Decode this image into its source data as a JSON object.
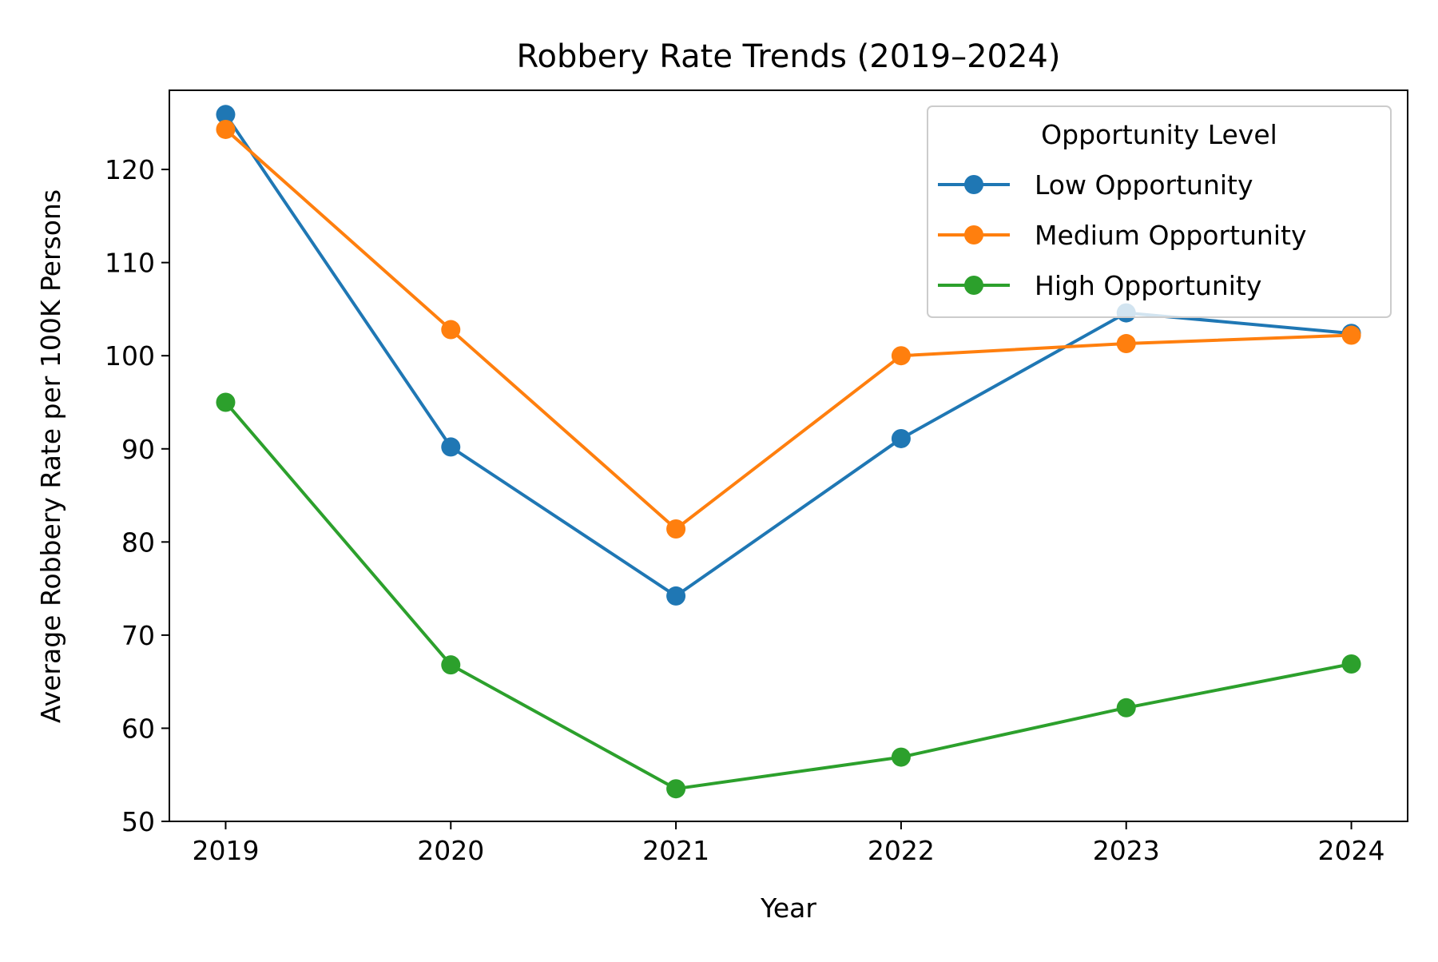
{
  "chart_data": {
    "type": "line",
    "title": "Robbery Rate Trends (2019–2024)",
    "xlabel": "Year",
    "ylabel": "Average Robbery Rate per 100K Persons",
    "x": [
      2019,
      2020,
      2021,
      2022,
      2023,
      2024
    ],
    "x_ticks": [
      "2019",
      "2020",
      "2021",
      "2022",
      "2023",
      "2024"
    ],
    "xlim": [
      2018.75,
      2024.25
    ],
    "ylim": [
      50,
      128.5
    ],
    "y_ticks": [
      50,
      60,
      70,
      80,
      90,
      100,
      110,
      120
    ],
    "y_tick_labels": [
      "50",
      "60",
      "70",
      "80",
      "90",
      "100",
      "110",
      "120"
    ],
    "grid": false,
    "legend": {
      "title": "Opportunity Level",
      "placement": "upper right"
    },
    "series": [
      {
        "name": "Low Opportunity",
        "color": "#1f77b4",
        "values": [
          125.9,
          90.2,
          74.2,
          91.1,
          104.6,
          102.4
        ]
      },
      {
        "name": "Medium Opportunity",
        "color": "#ff7f0e",
        "values": [
          124.3,
          102.8,
          81.4,
          100.0,
          101.3,
          102.2
        ]
      },
      {
        "name": "High Opportunity",
        "color": "#2ca02c",
        "values": [
          95.0,
          66.8,
          53.5,
          56.9,
          62.2,
          66.9
        ]
      }
    ]
  }
}
